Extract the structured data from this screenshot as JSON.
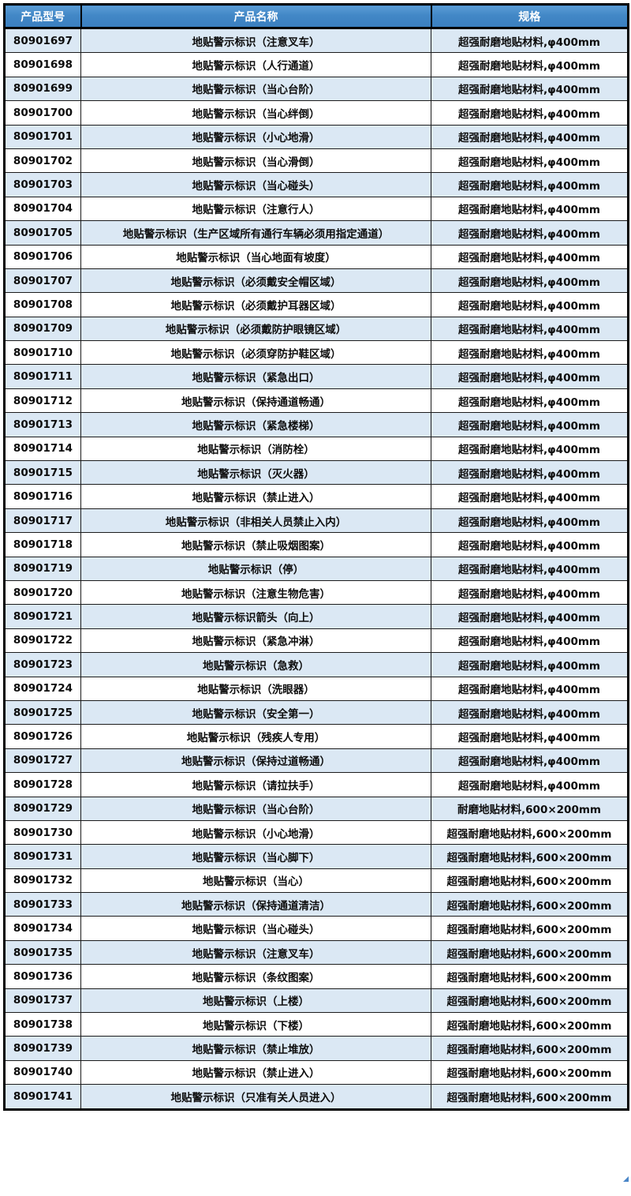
{
  "table": {
    "columns": [
      {
        "key": "model",
        "label": "产品型号"
      },
      {
        "key": "name",
        "label": "产品名称"
      },
      {
        "key": "spec",
        "label": "规格"
      }
    ],
    "rows": [
      {
        "model": "80901697",
        "name": "地贴警示标识（注意叉车）",
        "spec": "超强耐磨地贴材料,φ400mm"
      },
      {
        "model": "80901698",
        "name": "地贴警示标识（人行通道）",
        "spec": "超强耐磨地贴材料,φ400mm"
      },
      {
        "model": "80901699",
        "name": "地贴警示标识（当心台阶）",
        "spec": "超强耐磨地贴材料,φ400mm"
      },
      {
        "model": "80901700",
        "name": "地贴警示标识（当心绊倒）",
        "spec": "超强耐磨地贴材料,φ400mm"
      },
      {
        "model": "80901701",
        "name": "地贴警示标识（小心地滑）",
        "spec": "超强耐磨地贴材料,φ400mm"
      },
      {
        "model": "80901702",
        "name": "地贴警示标识（当心滑倒）",
        "spec": "超强耐磨地贴材料,φ400mm"
      },
      {
        "model": "80901703",
        "name": "地贴警示标识（当心碰头）",
        "spec": "超强耐磨地贴材料,φ400mm"
      },
      {
        "model": "80901704",
        "name": "地贴警示标识（注意行人）",
        "spec": "超强耐磨地贴材料,φ400mm"
      },
      {
        "model": "80901705",
        "name": "地贴警示标识（生产区域所有通行车辆必须用指定通道）",
        "spec": "超强耐磨地贴材料,φ400mm"
      },
      {
        "model": "80901706",
        "name": "地贴警示标识（当心地面有坡度）",
        "spec": "超强耐磨地贴材料,φ400mm"
      },
      {
        "model": "80901707",
        "name": "地贴警示标识（必须戴安全帽区域）",
        "spec": "超强耐磨地贴材料,φ400mm"
      },
      {
        "model": "80901708",
        "name": "地贴警示标识（必须戴护耳器区域）",
        "spec": "超强耐磨地贴材料,φ400mm"
      },
      {
        "model": "80901709",
        "name": "地贴警示标识（必须戴防护眼镜区域）",
        "spec": "超强耐磨地贴材料,φ400mm"
      },
      {
        "model": "80901710",
        "name": "地贴警示标识（必须穿防护鞋区域）",
        "spec": "超强耐磨地贴材料,φ400mm"
      },
      {
        "model": "80901711",
        "name": "地贴警示标识（紧急出口）",
        "spec": "超强耐磨地贴材料,φ400mm"
      },
      {
        "model": "80901712",
        "name": "地贴警示标识（保持通道畅通）",
        "spec": "超强耐磨地贴材料,φ400mm"
      },
      {
        "model": "80901713",
        "name": "地贴警示标识（紧急楼梯）",
        "spec": "超强耐磨地贴材料,φ400mm"
      },
      {
        "model": "80901714",
        "name": "地贴警示标识（消防栓）",
        "spec": "超强耐磨地贴材料,φ400mm"
      },
      {
        "model": "80901715",
        "name": "地贴警示标识（灭火器）",
        "spec": "超强耐磨地贴材料,φ400mm"
      },
      {
        "model": "80901716",
        "name": "地贴警示标识（禁止进入）",
        "spec": "超强耐磨地贴材料,φ400mm"
      },
      {
        "model": "80901717",
        "name": "地贴警示标识（非相关人员禁止入内）",
        "spec": "超强耐磨地贴材料,φ400mm"
      },
      {
        "model": "80901718",
        "name": "地贴警示标识（禁止吸烟图案）",
        "spec": "超强耐磨地贴材料,φ400mm"
      },
      {
        "model": "80901719",
        "name": "地贴警示标识（停）",
        "spec": "超强耐磨地贴材料,φ400mm"
      },
      {
        "model": "80901720",
        "name": "地贴警示标识（注意生物危害）",
        "spec": "超强耐磨地贴材料,φ400mm"
      },
      {
        "model": "80901721",
        "name": "地贴警示标识箭头（向上）",
        "spec": "超强耐磨地贴材料,φ400mm"
      },
      {
        "model": "80901722",
        "name": "地贴警示标识（紧急冲淋）",
        "spec": "超强耐磨地贴材料,φ400mm"
      },
      {
        "model": "80901723",
        "name": "地贴警示标识（急救）",
        "spec": "超强耐磨地贴材料,φ400mm"
      },
      {
        "model": "80901724",
        "name": "地贴警示标识（洗眼器）",
        "spec": "超强耐磨地贴材料,φ400mm"
      },
      {
        "model": "80901725",
        "name": "地贴警示标识（安全第一）",
        "spec": "超强耐磨地贴材料,φ400mm"
      },
      {
        "model": "80901726",
        "name": "地贴警示标识（残疾人专用）",
        "spec": "超强耐磨地贴材料,φ400mm"
      },
      {
        "model": "80901727",
        "name": "地贴警示标识（保持过道畅通）",
        "spec": "超强耐磨地贴材料,φ400mm"
      },
      {
        "model": "80901728",
        "name": "地贴警示标识（请拉扶手）",
        "spec": "超强耐磨地贴材料,φ400mm"
      },
      {
        "model": "80901729",
        "name": "地贴警示标识（当心台阶）",
        "spec": "耐磨地贴材料,600×200mm"
      },
      {
        "model": "80901730",
        "name": "地贴警示标识（小心地滑）",
        "spec": "超强耐磨地贴材料,600×200mm"
      },
      {
        "model": "80901731",
        "name": "地贴警示标识（当心脚下）",
        "spec": "超强耐磨地贴材料,600×200mm"
      },
      {
        "model": "80901732",
        "name": "地贴警示标识（当心）",
        "spec": "超强耐磨地贴材料,600×200mm"
      },
      {
        "model": "80901733",
        "name": "地贴警示标识（保持通道清洁）",
        "spec": "超强耐磨地贴材料,600×200mm"
      },
      {
        "model": "80901734",
        "name": "地贴警示标识（当心碰头）",
        "spec": "超强耐磨地贴材料,600×200mm"
      },
      {
        "model": "80901735",
        "name": "地贴警示标识（注意叉车）",
        "spec": "超强耐磨地贴材料,600×200mm"
      },
      {
        "model": "80901736",
        "name": "地贴警示标识（条纹图案）",
        "spec": "超强耐磨地贴材料,600×200mm"
      },
      {
        "model": "80901737",
        "name": "地贴警示标识（上楼）",
        "spec": "超强耐磨地贴材料,600×200mm"
      },
      {
        "model": "80901738",
        "name": "地贴警示标识（下楼）",
        "spec": "超强耐磨地贴材料,600×200mm"
      },
      {
        "model": "80901739",
        "name": "地贴警示标识（禁止堆放）",
        "spec": "超强耐磨地贴材料,600×200mm"
      },
      {
        "model": "80901740",
        "name": "地贴警示标识（禁止进入）",
        "spec": "超强耐磨地贴材料,600×200mm"
      },
      {
        "model": "80901741",
        "name": "地贴警示标识（只准有关人员进入）",
        "spec": "超强耐磨地贴材料,600×200mm"
      }
    ]
  },
  "colors": {
    "header_gradient_top": "#5b9dd6",
    "header_gradient_bottom": "#3a7fc0",
    "header_text": "#ffffff",
    "row_stripe": "#dbe8f4",
    "row_plain": "#ffffff",
    "grid_border": "#1c1c1c",
    "outer_border": "#000000",
    "corner_mark": "#4a86c8"
  }
}
